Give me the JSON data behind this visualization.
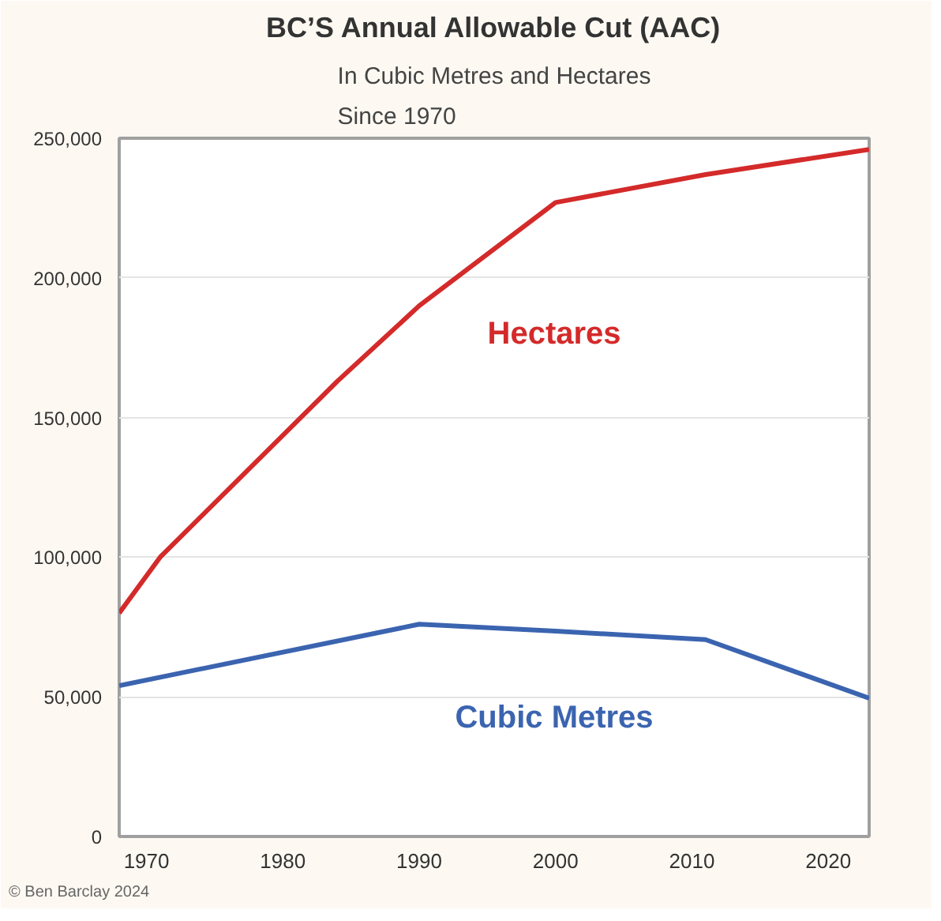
{
  "chart_data": {
    "type": "line",
    "title": "BC’S Annual Allowable Cut (AAC)",
    "subtitle": "In Cubic Metres and Hectares\nSince 1970",
    "annotations": [
      "© Ben Barclay 2024"
    ],
    "series": [
      {
        "name": "Hectares",
        "color": "#d42a2a",
        "x": [
          1968,
          1971,
          1984,
          1990,
          2000,
          2011,
          2023
        ],
        "values": [
          80000,
          100000,
          163000,
          190000,
          227000,
          237000,
          246000
        ]
      },
      {
        "name": "Cubic Metres",
        "color": "#3b64b0",
        "x": [
          1968,
          1990,
          2000,
          2011,
          2023
        ],
        "values": [
          54000,
          76000,
          73500,
          70500,
          49500
        ]
      }
    ],
    "xlim": [
      1968,
      2023
    ],
    "xticks": [
      1970,
      1980,
      1990,
      2000,
      2010,
      2020
    ],
    "ylim": [
      0,
      250000
    ],
    "yticks": [
      {
        "value": 0,
        "label": "0"
      },
      {
        "value": 50000,
        "label": "50,000"
      },
      {
        "value": 100000,
        "label": "100,000"
      },
      {
        "value": 150000,
        "label": "150,000"
      },
      {
        "value": 200000,
        "label": "200,000"
      },
      {
        "value": 250000,
        "label": "250,000"
      }
    ],
    "grid": "y",
    "legend": false,
    "marker": "none",
    "line_style": "solid"
  }
}
